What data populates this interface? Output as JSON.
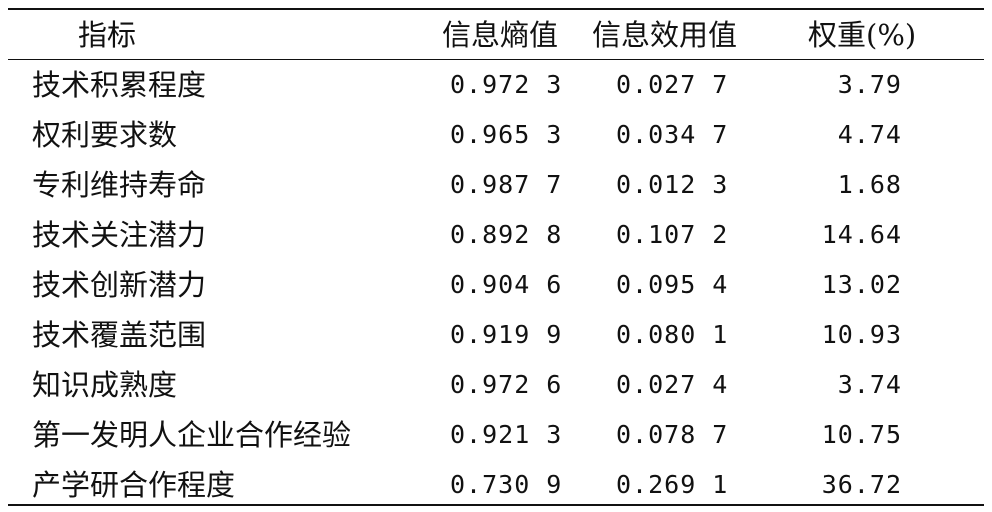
{
  "table": {
    "headers": {
      "indicator": "指标",
      "entropy": "信息熵值",
      "utility": "信息效用值",
      "weight": "权重(%)"
    },
    "rows": [
      {
        "indicator": "技术积累程度",
        "entropy": "0.972 3",
        "utility": "0.027 7",
        "weight": "3.79"
      },
      {
        "indicator": "权利要求数",
        "entropy": "0.965 3",
        "utility": "0.034 7",
        "weight": "4.74"
      },
      {
        "indicator": "专利维持寿命",
        "entropy": "0.987 7",
        "utility": "0.012 3",
        "weight": "1.68"
      },
      {
        "indicator": "技术关注潜力",
        "entropy": "0.892 8",
        "utility": "0.107 2",
        "weight": "14.64"
      },
      {
        "indicator": "技术创新潜力",
        "entropy": "0.904 6",
        "utility": "0.095 4",
        "weight": "13.02"
      },
      {
        "indicator": "技术覆盖范围",
        "entropy": "0.919 9",
        "utility": "0.080 1",
        "weight": "10.93"
      },
      {
        "indicator": "知识成熟度",
        "entropy": "0.972 6",
        "utility": "0.027 4",
        "weight": "3.74"
      },
      {
        "indicator": "第一发明人企业合作经验",
        "entropy": "0.921 3",
        "utility": "0.078 7",
        "weight": "10.75"
      },
      {
        "indicator": "产学研合作程度",
        "entropy": "0.730 9",
        "utility": "0.269 1",
        "weight": "36.72"
      }
    ]
  }
}
